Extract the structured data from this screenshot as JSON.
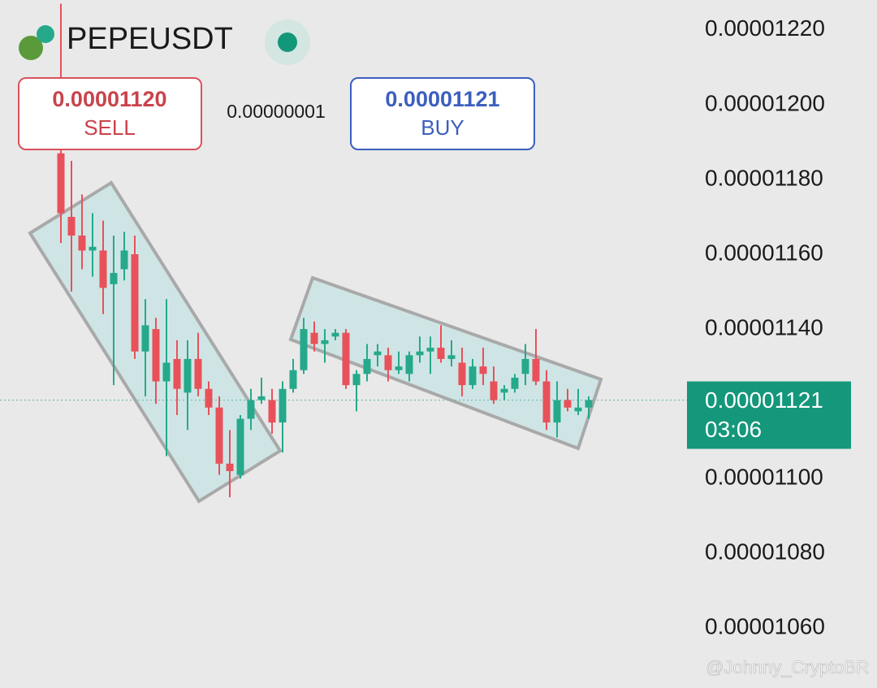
{
  "chart_data": {
    "type": "candlestick",
    "title": "PEPEUSDT",
    "sell": {
      "price": "0.00001120",
      "label": "SELL"
    },
    "spread": "0.00000001",
    "buy": {
      "price": "0.00001121",
      "label": "BUY"
    },
    "last_price": {
      "value": 1.121e-05,
      "label": "0.00001121"
    },
    "countdown": "03:06",
    "watermark": "@Johnny_CryptoBR",
    "up_color": "#26a98b",
    "down_color": "#e8515a",
    "ylim": [
      1.044e-05,
      1.228e-05
    ],
    "yticks": [
      {
        "value": 1.22e-05,
        "label": "0.00001220"
      },
      {
        "value": 1.2e-05,
        "label": "0.00001200"
      },
      {
        "value": 1.18e-05,
        "label": "0.00001180"
      },
      {
        "value": 1.16e-05,
        "label": "0.00001160"
      },
      {
        "value": 1.14e-05,
        "label": "0.00001140"
      },
      {
        "value": 1.1e-05,
        "label": "0.00001100"
      },
      {
        "value": 1.08e-05,
        "label": "0.00001080"
      },
      {
        "value": 1.06e-05,
        "label": "0.00001060"
      }
    ],
    "open": [
      1.187e-05,
      1.17e-05,
      1.165e-05,
      1.161e-05,
      1.161e-05,
      1.152e-05,
      1.156e-05,
      1.16e-05,
      1.134e-05,
      1.14e-05,
      1.126e-05,
      1.132e-05,
      1.123e-05,
      1.132e-05,
      1.124e-05,
      1.119e-05,
      1.104e-05,
      1.101e-05,
      1.116e-05,
      1.121e-05,
      1.121e-05,
      1.115e-05,
      1.124e-05,
      1.129e-05,
      1.139e-05,
      1.136e-05,
      1.138e-05,
      1.139e-05,
      1.125e-05,
      1.128e-05,
      1.133e-05,
      1.133e-05,
      1.129e-05,
      1.128e-05,
      1.133e-05,
      1.134e-05,
      1.135e-05,
      1.132e-05,
      1.131e-05,
      1.125e-05,
      1.13e-05,
      1.126e-05,
      1.123e-05,
      1.124e-05,
      1.128e-05,
      1.132e-05,
      1.126e-05,
      1.115e-05,
      1.121e-05,
      1.118e-05,
      1.119e-05
    ],
    "high": [
      1.227e-05,
      1.185e-05,
      1.176e-05,
      1.171e-05,
      1.169e-05,
      1.165e-05,
      1.166e-05,
      1.165e-05,
      1.148e-05,
      1.143e-05,
      1.148e-05,
      1.137e-05,
      1.137e-05,
      1.139e-05,
      1.126e-05,
      1.122e-05,
      1.113e-05,
      1.117e-05,
      1.124e-05,
      1.127e-05,
      1.124e-05,
      1.126e-05,
      1.132e-05,
      1.143e-05,
      1.142e-05,
      1.14e-05,
      1.14e-05,
      1.14e-05,
      1.129e-05,
      1.136e-05,
      1.136e-05,
      1.135e-05,
      1.134e-05,
      1.134e-05,
      1.138e-05,
      1.138e-05,
      1.141e-05,
      1.137e-05,
      1.135e-05,
      1.132e-05,
      1.135e-05,
      1.13e-05,
      1.125e-05,
      1.128e-05,
      1.136e-05,
      1.14e-05,
      1.129e-05,
      1.126e-05,
      1.124e-05,
      1.124e-05,
      1.122e-05
    ],
    "low": [
      1.163e-05,
      1.15e-05,
      1.156e-05,
      1.154e-05,
      1.144e-05,
      1.125e-05,
      1.153e-05,
      1.132e-05,
      1.122e-05,
      1.12e-05,
      1.106e-05,
      1.117e-05,
      1.113e-05,
      1.122e-05,
      1.117e-05,
      1.101e-05,
      1.095e-05,
      1.1e-05,
      1.113e-05,
      1.12e-05,
      1.112e-05,
      1.107e-05,
      1.123e-05,
      1.128e-05,
      1.134e-05,
      1.131e-05,
      1.137e-05,
      1.124e-05,
      1.118e-05,
      1.126e-05,
      1.13e-05,
      1.126e-05,
      1.128e-05,
      1.126e-05,
      1.131e-05,
      1.128e-05,
      1.131e-05,
      1.13e-05,
      1.122e-05,
      1.124e-05,
      1.125e-05,
      1.12e-05,
      1.121e-05,
      1.123e-05,
      1.125e-05,
      1.125e-05,
      1.113e-05,
      1.111e-05,
      1.118e-05,
      1.117e-05,
      1.116e-05
    ],
    "close": [
      1.171e-05,
      1.165e-05,
      1.161e-05,
      1.162e-05,
      1.151e-05,
      1.155e-05,
      1.161e-05,
      1.134e-05,
      1.141e-05,
      1.126e-05,
      1.131e-05,
      1.124e-05,
      1.132e-05,
      1.124e-05,
      1.119e-05,
      1.104e-05,
      1.102e-05,
      1.116e-05,
      1.121e-05,
      1.122e-05,
      1.115e-05,
      1.124e-05,
      1.129e-05,
      1.14e-05,
      1.136e-05,
      1.137e-05,
      1.139e-05,
      1.125e-05,
      1.128e-05,
      1.132e-05,
      1.134e-05,
      1.129e-05,
      1.13e-05,
      1.133e-05,
      1.134e-05,
      1.135e-05,
      1.132e-05,
      1.133e-05,
      1.125e-05,
      1.13e-05,
      1.128e-05,
      1.121e-05,
      1.124e-05,
      1.127e-05,
      1.132e-05,
      1.126e-05,
      1.115e-05,
      1.121e-05,
      1.119e-05,
      1.119e-05,
      1.121e-05
    ]
  }
}
